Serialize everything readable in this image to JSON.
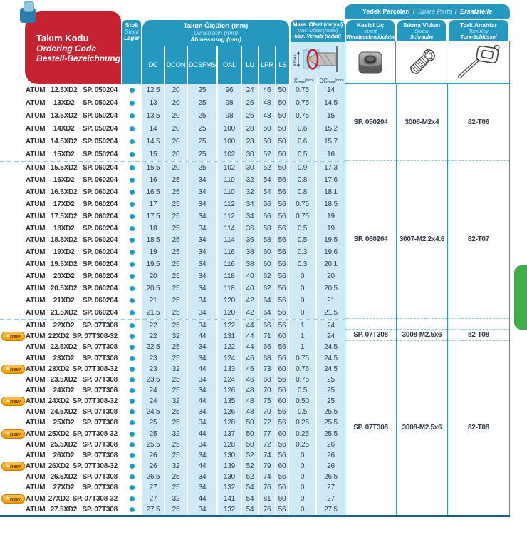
{
  "brand": "ATUM",
  "badge_label": "new",
  "header": {
    "ordering_code": {
      "line1": "Takım Kodu",
      "line2": "Ordering Code",
      "line3": "Bestell-Bezeichnung"
    },
    "stock": {
      "line1": "Stok",
      "line2": "Stock",
      "line3": "Lager"
    },
    "dimensions": {
      "line1": "Takım Ölçüleri (mm)",
      "line2": "Dimension (mm)",
      "line3": "Abmessung (mm)"
    },
    "dim_columns": [
      "DC",
      "DCON",
      "DCSFMS",
      "OAL",
      "LU",
      "LPR",
      "LS"
    ],
    "offset": {
      "line1": "Maks. Ofset (radyal)",
      "line2": "Max. Offset (radial)",
      "line3": "Max. Versatz (radial)",
      "diagram_label": "Xmax",
      "x_base": "X",
      "x_sub": "max",
      "x_unit": "[mm]",
      "dc_base": "DC",
      "dc_sub": "max",
      "dc_unit": "[mm]"
    },
    "spare_banner": {
      "tr": "Yedek Parçaları",
      "sep": "/",
      "en": "Spare Parts",
      "de": "Ersatzteile"
    },
    "insert": {
      "line1": "Kesici Uç",
      "line2": "Insert",
      "line3": "Wendeschneidplatte"
    },
    "screw": {
      "line1": "Sıkma Vidası",
      "line2": "Screw",
      "line3": "Schraube"
    },
    "torx": {
      "line1": "Tork Anahtar",
      "line2": "Torx Key",
      "line3": "Torx-Schlüssel"
    }
  },
  "groups": [
    {
      "rows": [
        [
          "12.5XD2",
          "SP. 050204",
          0,
          "12.5",
          "20",
          "25",
          "96",
          "24",
          "46",
          "50",
          "0.75",
          "14"
        ],
        [
          "13XD2",
          "SP. 050204",
          0,
          "13",
          "20",
          "25",
          "98",
          "26",
          "48",
          "50",
          "0.75",
          "14.5"
        ],
        [
          "13.5XD2",
          "SP. 050204",
          0,
          "13.5",
          "20",
          "25",
          "98",
          "26",
          "48",
          "50",
          "0.75",
          "15"
        ],
        [
          "14XD2",
          "SP. 050204",
          0,
          "14",
          "20",
          "25",
          "100",
          "28",
          "50",
          "50",
          "0.6",
          "15.2"
        ],
        [
          "14.5XD2",
          "SP. 050204",
          0,
          "14.5",
          "20",
          "25",
          "100",
          "28",
          "50",
          "50",
          "0.6",
          "15.7"
        ],
        [
          "15XD2",
          "SP. 050204",
          0,
          "15",
          "20",
          "25",
          "102",
          "30",
          "52",
          "50",
          "0.5",
          "16"
        ]
      ]
    },
    {
      "rows": [
        [
          "15.5XD2",
          "SP. 060204",
          0,
          "15.5",
          "20",
          "25",
          "102",
          "30",
          "52",
          "50",
          "0.9",
          "17.3"
        ],
        [
          "16XD2",
          "SP. 060204",
          0,
          "16",
          "25",
          "34",
          "110",
          "32",
          "54",
          "56",
          "0.8",
          "17.6"
        ],
        [
          "16.5XD2",
          "SP. 060204",
          0,
          "16.5",
          "25",
          "34",
          "110",
          "32",
          "54",
          "56",
          "0.8",
          "18.1"
        ],
        [
          "17XD2",
          "SP. 060204",
          0,
          "17",
          "25",
          "34",
          "112",
          "34",
          "56",
          "56",
          "0.75",
          "18.5"
        ],
        [
          "17.5XD2",
          "SP. 060204",
          0,
          "17.5",
          "25",
          "34",
          "112",
          "34",
          "56",
          "56",
          "0.75",
          "19"
        ],
        [
          "18XD2",
          "SP. 060204",
          0,
          "18",
          "25",
          "34",
          "114",
          "36",
          "58",
          "56",
          "0.5",
          "19"
        ],
        [
          "18.5XD2",
          "SP. 060204",
          0,
          "18.5",
          "25",
          "34",
          "114",
          "36",
          "58",
          "56",
          "0.5",
          "19.5"
        ],
        [
          "19XD2",
          "SP. 060204",
          0,
          "19",
          "25",
          "34",
          "116",
          "38",
          "60",
          "56",
          "0.3",
          "19.6"
        ],
        [
          "19.5XD2",
          "SP. 060204",
          0,
          "19.5",
          "25",
          "34",
          "116",
          "38",
          "60",
          "56",
          "0.3",
          "20.1"
        ],
        [
          "20XD2",
          "SP. 060204",
          0,
          "20",
          "25",
          "34",
          "118",
          "40",
          "62",
          "56",
          "0",
          "20"
        ],
        [
          "20.5XD2",
          "SP. 060204",
          0,
          "20.5",
          "25",
          "34",
          "118",
          "40",
          "62",
          "56",
          "0",
          "20.5"
        ],
        [
          "21XD2",
          "SP. 060204",
          0,
          "21",
          "25",
          "34",
          "120",
          "42",
          "64",
          "56",
          "0",
          "21"
        ],
        [
          "21.5XD2",
          "SP. 060204",
          0,
          "21.5",
          "25",
          "34",
          "120",
          "42",
          "64",
          "56",
          "0",
          "21.5"
        ]
      ]
    },
    {
      "rows": [
        [
          "22XD2",
          "SP. 07T308",
          0,
          "22",
          "25",
          "34",
          "122",
          "44",
          "66",
          "56",
          "1",
          "24"
        ],
        [
          "22XD2",
          "SP. 07T308-32",
          1,
          "22",
          "32",
          "44",
          "131",
          "44",
          "71",
          "60",
          "1",
          "24"
        ],
        [
          "22.5XD2",
          "SP. 07T308",
          0,
          "22.5",
          "25",
          "34",
          "122",
          "44",
          "66",
          "56",
          "1",
          "24.5"
        ],
        [
          "23XD2",
          "SP. 07T308",
          0,
          "23",
          "25",
          "34",
          "124",
          "46",
          "68",
          "56",
          "0.75",
          "24.5"
        ],
        [
          "23XD2",
          "SP. 07T308-32",
          1,
          "23",
          "32",
          "44",
          "133",
          "46",
          "73",
          "60",
          "0.75",
          "24.5"
        ],
        [
          "23.5XD2",
          "SP. 07T308",
          0,
          "23.5",
          "25",
          "34",
          "124",
          "46",
          "68",
          "56",
          "0.75",
          "25"
        ],
        [
          "24XD2",
          "SP. 07T308",
          0,
          "24",
          "25",
          "34",
          "126",
          "48",
          "70",
          "56",
          "0.5",
          "25"
        ],
        [
          "24XD2",
          "SP. 07T308-32",
          1,
          "24",
          "32",
          "44",
          "135",
          "48",
          "75",
          "60",
          "0.50",
          "25"
        ],
        [
          "24.5XD2",
          "SP. 07T308",
          0,
          "24.5",
          "25",
          "34",
          "126",
          "48",
          "70",
          "56",
          "0.5",
          "25.5"
        ],
        [
          "25XD2",
          "SP. 07T308",
          0,
          "25",
          "25",
          "34",
          "128",
          "50",
          "72",
          "56",
          "0.25",
          "25.5"
        ],
        [
          "25XD2",
          "SP. 07T308-32",
          1,
          "25",
          "32",
          "44",
          "137",
          "50",
          "77",
          "60",
          "0.25",
          "25.5"
        ],
        [
          "25.5XD2",
          "SP. 07T308",
          0,
          "25.5",
          "25",
          "34",
          "128",
          "50",
          "72",
          "56",
          "0.25",
          "26"
        ],
        [
          "26XD2",
          "SP. 07T308",
          0,
          "26",
          "25",
          "34",
          "130",
          "52",
          "74",
          "56",
          "0",
          "26"
        ],
        [
          "26XD2",
          "SP. 07T308-32",
          1,
          "26",
          "32",
          "44",
          "139",
          "52",
          "79",
          "60",
          "0",
          "26"
        ],
        [
          "26.5XD2",
          "SP. 07T308",
          0,
          "26.5",
          "25",
          "34",
          "130",
          "52",
          "74",
          "56",
          "0",
          "26.5"
        ],
        [
          "27XD2",
          "SP. 07T308",
          0,
          "27",
          "25",
          "34",
          "132",
          "54",
          "76",
          "56",
          "0",
          "27"
        ],
        [
          "27XD2",
          "SP. 07T308-32",
          1,
          "27",
          "32",
          "44",
          "141",
          "54",
          "81",
          "60",
          "0",
          "27"
        ],
        [
          "27.5XD2",
          "SP. 07T308",
          0,
          "27.5",
          "25",
          "34",
          "132",
          "54",
          "76",
          "56",
          "0",
          "27.5"
        ]
      ]
    }
  ],
  "spare_cells": {
    "insert": [
      "SP. 050204",
      "SP. 060204",
      "",
      "SP. 07T308",
      "SP. 07T308"
    ],
    "screw": [
      "3006-M2x4",
      "3007-M2.2x4.6",
      "",
      "3008-M2.5x6",
      "3008-M2.5x6"
    ],
    "torx": [
      "82-T06",
      "82-T07",
      "",
      "82-T08",
      "82-T08"
    ]
  },
  "colors": {
    "header_red": "#c62231",
    "header_blue": "#2598bf",
    "row_light_blue": "#cfe9f5",
    "stock_dot": "#1a9bc5",
    "badge_orange": "#f2a517",
    "green_tab": "#3fae49",
    "bottom_border": "#1c5f87",
    "diagram_ellipse_red": "#cc2030"
  }
}
